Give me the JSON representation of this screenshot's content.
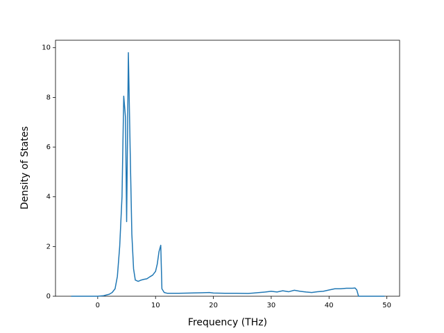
{
  "chart_data": {
    "type": "line",
    "x_label": "Frequency (THz)",
    "y_label": "Density of States",
    "xlim": [
      -7.3,
      52.2
    ],
    "ylim": [
      0,
      10.3
    ],
    "xticks": [
      0,
      10,
      20,
      30,
      40,
      50
    ],
    "yticks": [
      0,
      2,
      4,
      6,
      8,
      10
    ],
    "series": [
      {
        "color": "#1f77b4",
        "x": [
          -4.6,
          -2,
          0,
          1,
          2,
          2.5,
          3,
          3.4,
          3.8,
          4.2,
          4.5,
          4.8,
          5.0,
          5.3,
          5.6,
          5.9,
          6.2,
          6.5,
          7,
          7.5,
          8,
          8.5,
          9,
          9.5,
          10,
          10.3,
          10.6,
          10.9,
          11.1,
          11.5,
          12,
          14,
          16,
          18,
          19.3,
          20,
          22,
          24,
          26,
          27,
          28,
          29,
          30,
          31,
          32,
          33,
          34,
          35,
          36,
          37,
          38,
          39,
          40,
          41,
          42,
          43,
          44,
          44.5,
          44.8,
          45.1,
          47,
          49.6
        ],
        "values": [
          0,
          0,
          0,
          0.02,
          0.08,
          0.15,
          0.3,
          0.8,
          2,
          4,
          8.05,
          7.2,
          3.0,
          9.8,
          6,
          2.5,
          1.1,
          0.65,
          0.6,
          0.65,
          0.68,
          0.7,
          0.78,
          0.85,
          1.0,
          1.3,
          1.8,
          2.05,
          0.3,
          0.15,
          0.12,
          0.12,
          0.13,
          0.14,
          0.15,
          0.13,
          0.12,
          0.12,
          0.11,
          0.13,
          0.15,
          0.17,
          0.2,
          0.17,
          0.22,
          0.18,
          0.24,
          0.2,
          0.17,
          0.15,
          0.18,
          0.2,
          0.25,
          0.3,
          0.3,
          0.32,
          0.32,
          0.33,
          0.25,
          0,
          0,
          0
        ]
      }
    ]
  }
}
